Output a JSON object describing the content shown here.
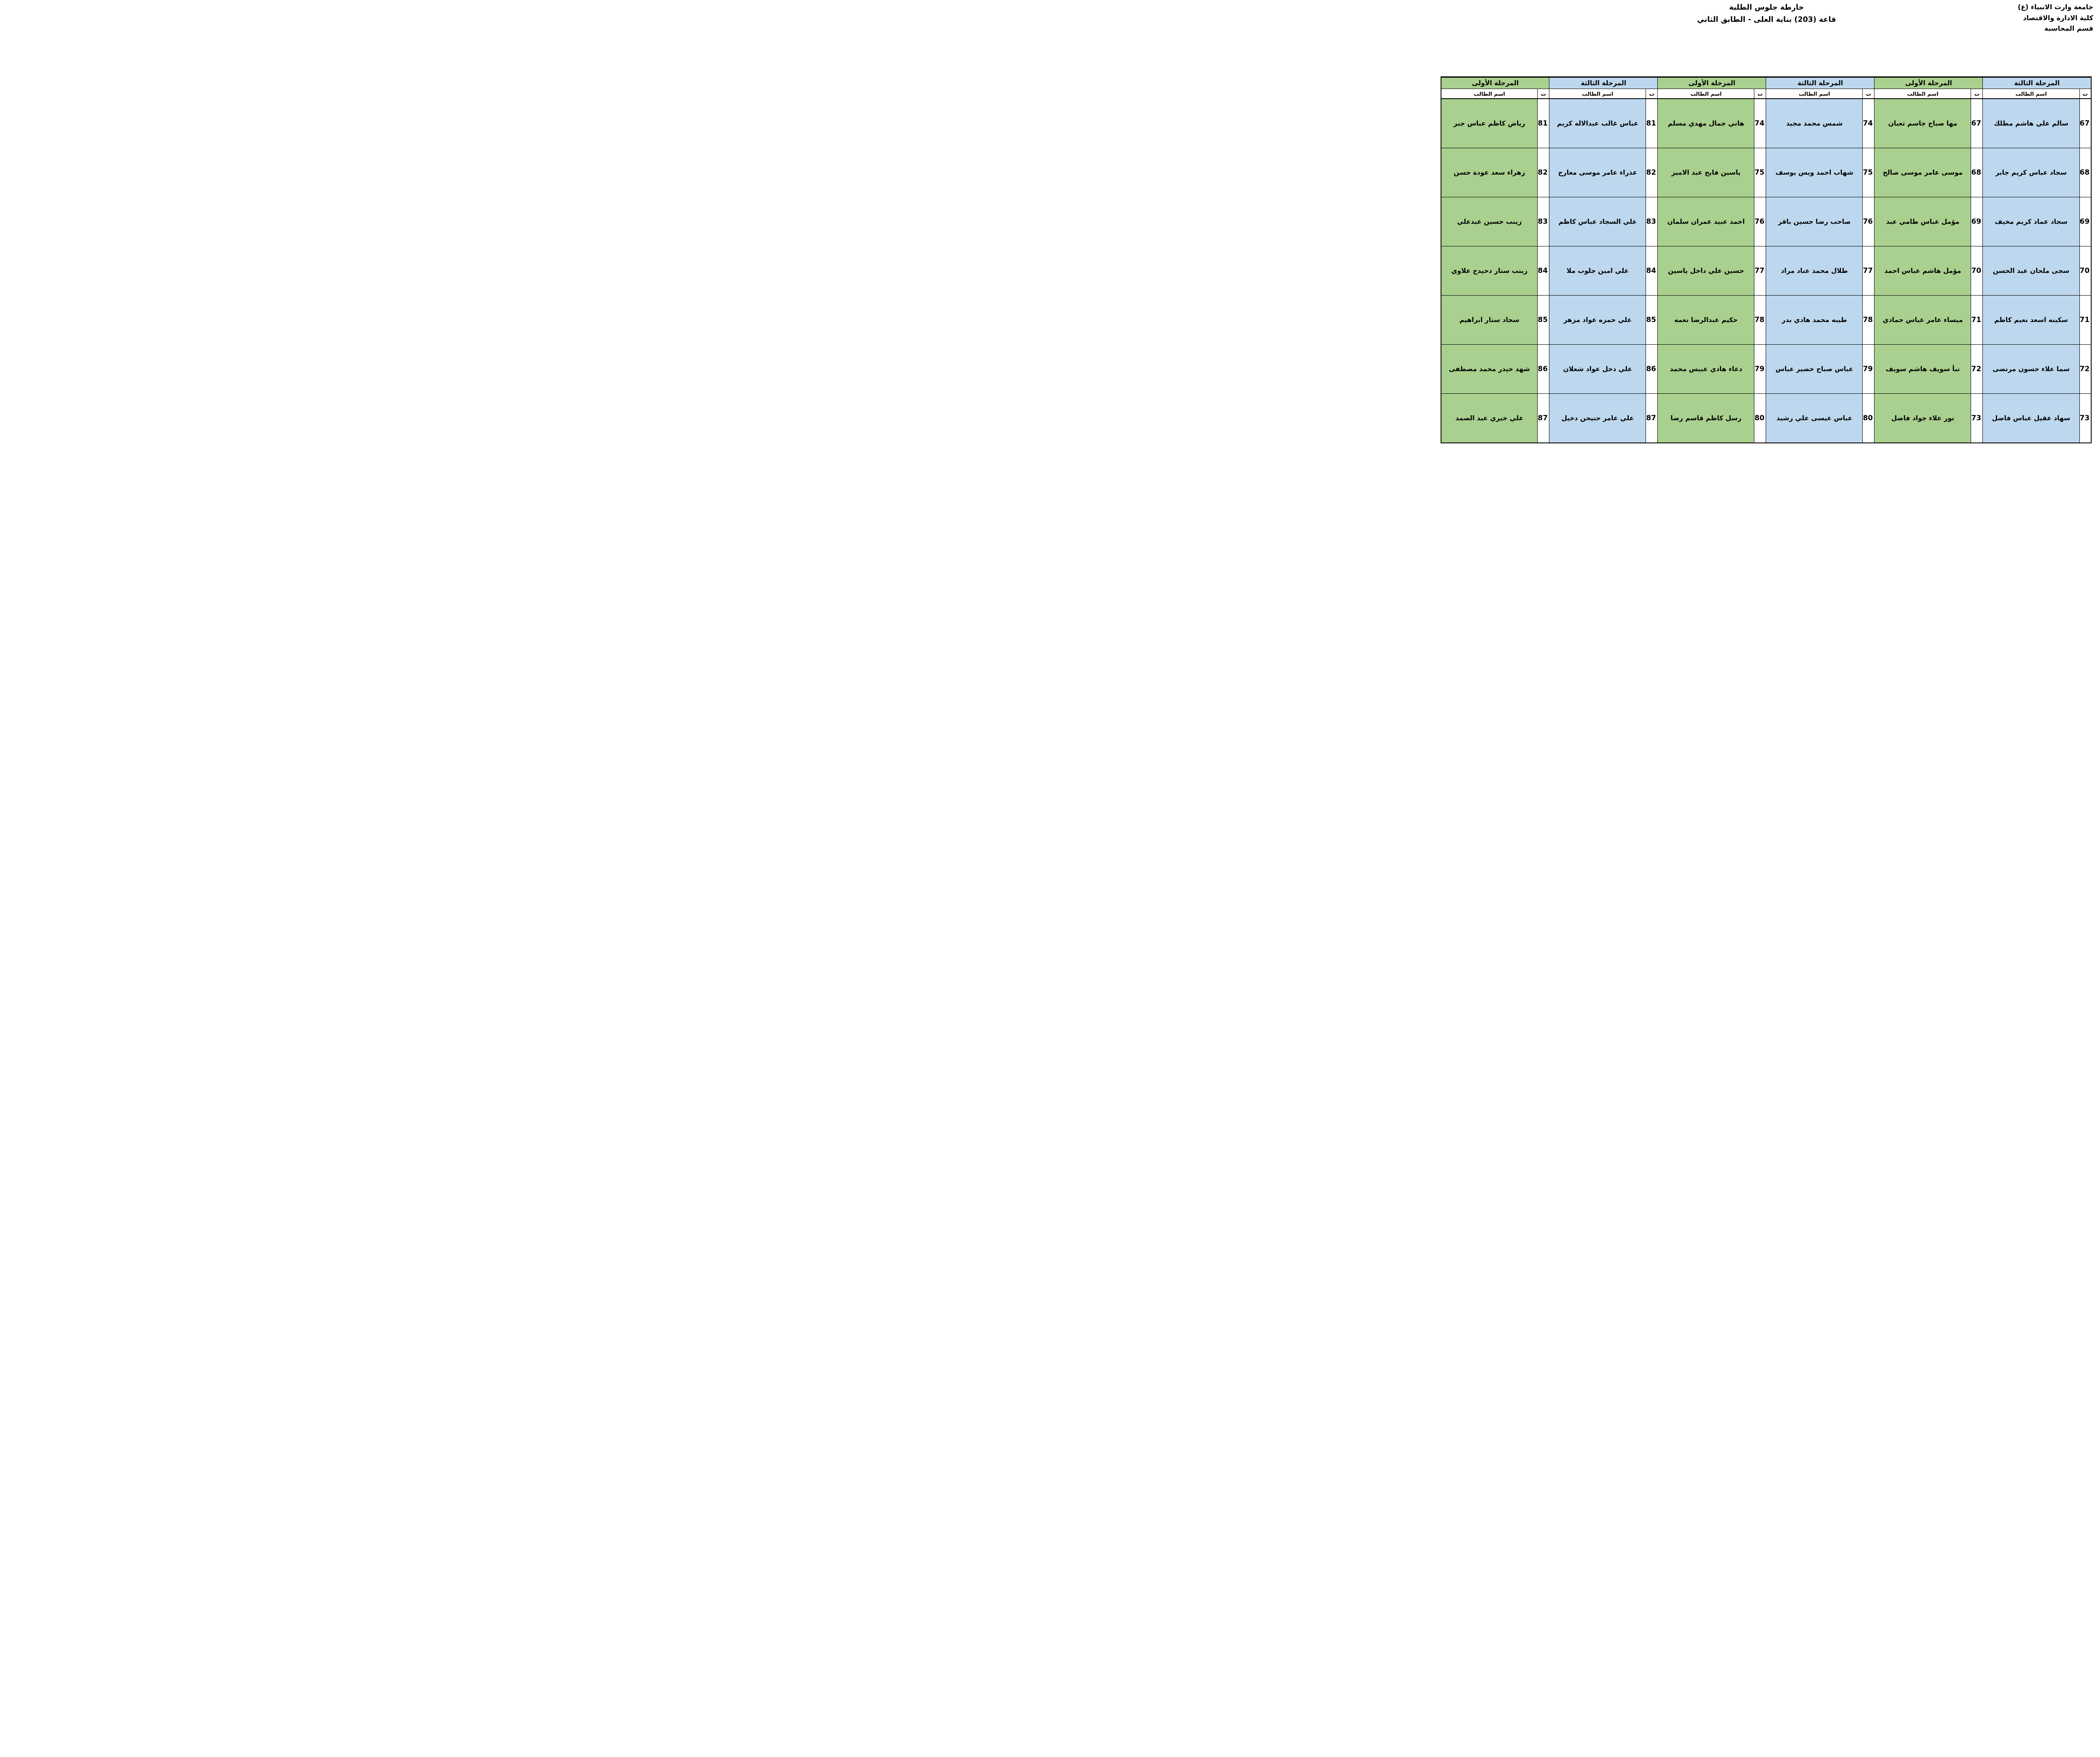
{
  "institution": {
    "line1": "جامعة وارث الانبياء (ع)",
    "line2": "كلية الادارة والاقتصاد",
    "line3": "قسم المحاسبة"
  },
  "title": {
    "line1": "خارطة جلوس الطلبة",
    "line2": "قاعة (203) بناية العلى - الطابق الثاني"
  },
  "table": {
    "name_header": "اسم الطالب",
    "num_header": "ت",
    "stage_colors": {
      "stage1_green": "#A9D08E",
      "stage3_blue": "#BDD7EE"
    },
    "groups": [
      {
        "stage": "المرحلة الثالثة",
        "color": "#BDD7EE",
        "rows": [
          {
            "n": 67,
            "name": "سالم علي هاشم مطلك"
          },
          {
            "n": 68,
            "name": "سجاد عباس كريم جابر"
          },
          {
            "n": 69,
            "name": "سجاد عماد كريم مخيف"
          },
          {
            "n": 70,
            "name": "سجى ملحان عبد الحسن"
          },
          {
            "n": 71,
            "name": "سكينه اسعد نعيم كاظم"
          },
          {
            "n": 72,
            "name": "سما علاء حسون مرتضى"
          },
          {
            "n": 73,
            "name": "سهاد عقيل عباس فاضل"
          }
        ]
      },
      {
        "stage": "المرحلة الأولى",
        "color": "#A9D08E",
        "rows": [
          {
            "n": 67,
            "name": "مها صباح جاسم ثعبان"
          },
          {
            "n": 68,
            "name": "موسى عامر موسى صالح"
          },
          {
            "n": 69,
            "name": "مؤمل عباس طامي عبد"
          },
          {
            "n": 70,
            "name": "مؤمل هاشم عباس احمد"
          },
          {
            "n": 71,
            "name": "ميساء عامر عباس حمادي"
          },
          {
            "n": 72,
            "name": "نبأ سويف هاشم سويف"
          },
          {
            "n": 73,
            "name": "نور علاء جواد فاضل"
          }
        ]
      },
      {
        "stage": "المرحلة الثالثة",
        "color": "#BDD7EE",
        "rows": [
          {
            "n": 74,
            "name": "شمس محمد مجيد"
          },
          {
            "n": 75,
            "name": "شهاب احمد ويس يوسف"
          },
          {
            "n": 76,
            "name": "صاحب رضا حسين باقر"
          },
          {
            "n": 77,
            "name": "طلال محمد عناد مراد"
          },
          {
            "n": 78,
            "name": "طيبه محمد هادي بدر"
          },
          {
            "n": 79,
            "name": "عباس صباح خضير عباس"
          },
          {
            "n": 80,
            "name": "عباس عيسى علي رشيد"
          }
        ]
      },
      {
        "stage": "المرحلة الأولى",
        "color": "#A9D08E",
        "rows": [
          {
            "n": 74,
            "name": "هاني جمال مهدي مسلم"
          },
          {
            "n": 75,
            "name": "ياسين فايح عبد الامير"
          },
          {
            "n": 76,
            "name": "احمد عبيد عمران سلمان"
          },
          {
            "n": 77,
            "name": "حسين علي داخل ياسين"
          },
          {
            "n": 78,
            "name": "حكيم عبدالرضا نعمه"
          },
          {
            "n": 79,
            "name": "دعاء هادي عبيس محمد"
          },
          {
            "n": 80,
            "name": "رسل كاظم قاسم رضا"
          }
        ]
      },
      {
        "stage": "المرحلة الثالثة",
        "color": "#BDD7EE",
        "rows": [
          {
            "n": 81,
            "name": "عباس غالب عبدالاله كريم"
          },
          {
            "n": 82,
            "name": "عذراء عامر موسى معارج"
          },
          {
            "n": 83,
            "name": "علي السجاد عباس كاظم"
          },
          {
            "n": 84,
            "name": "علي امين جلوب ملا"
          },
          {
            "n": 85,
            "name": "علي حمزه عواد مزهر"
          },
          {
            "n": 86,
            "name": "علي دخل عواد شعلان"
          },
          {
            "n": 87,
            "name": "علي عامر حنيحن دخيل"
          }
        ]
      },
      {
        "stage": "المرحلة الأولى",
        "color": "#A9D08E",
        "rows": [
          {
            "n": 81,
            "name": "رياض كاظم عباس جبر"
          },
          {
            "n": 82,
            "name": "زهراء سعد عودة حسن"
          },
          {
            "n": 83,
            "name": "زينب حسين عبدعلي"
          },
          {
            "n": 84,
            "name": "زينب ستار دحيدح علاوي"
          },
          {
            "n": 85,
            "name": "سجاد ستار ابراهيم"
          },
          {
            "n": 86,
            "name": "شهد حيدر محمد مصطفى"
          },
          {
            "n": 87,
            "name": "علي خيري عبد الصمد"
          }
        ]
      }
    ]
  }
}
